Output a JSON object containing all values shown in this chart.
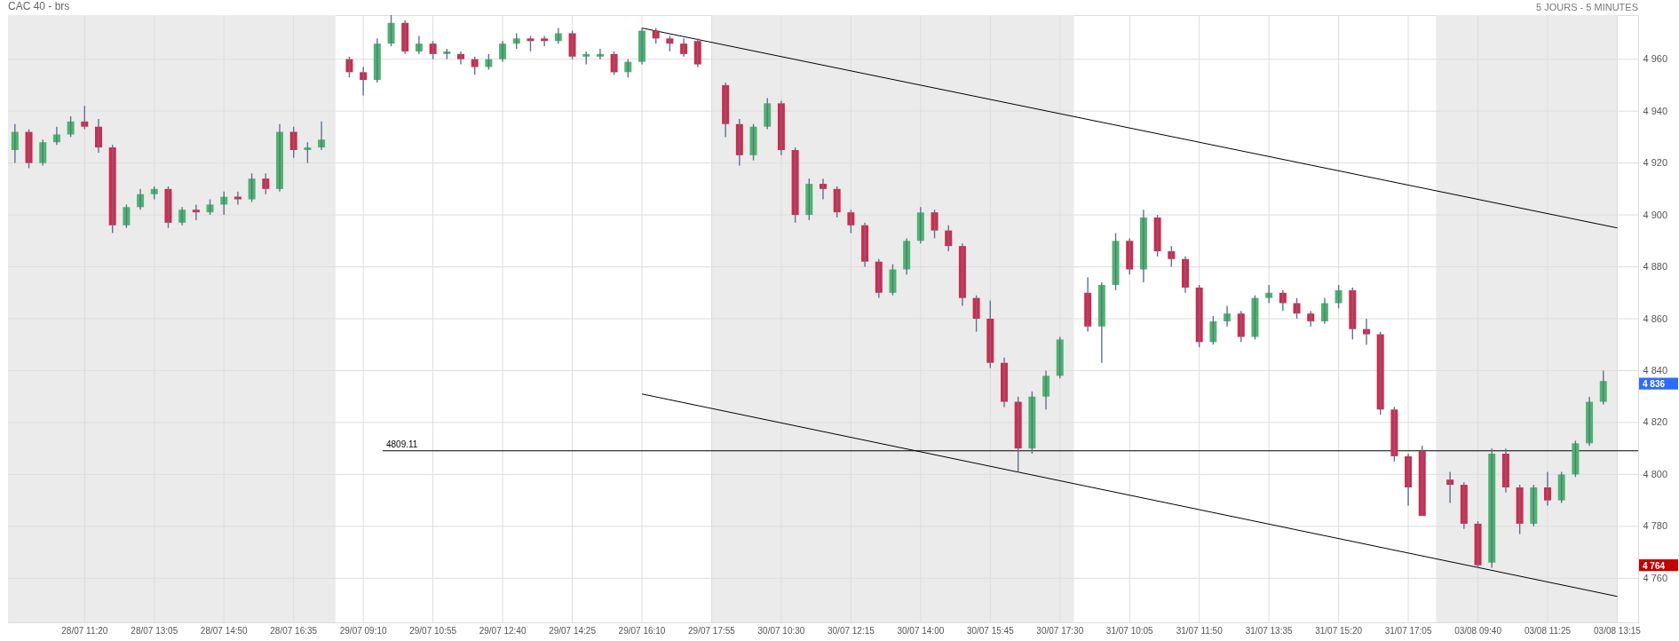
{
  "chart_data": {
    "type": "candlestick",
    "title": "CAC 40 - brs",
    "annotations": [
      "5 JOURS - 5 MINUTES",
      "4 836",
      "4 764"
    ],
    "categories": [
      null,
      null,
      null,
      null,
      null,
      "28/07 11:20",
      null,
      null,
      null,
      null,
      "28/07 13:05",
      null,
      null,
      null,
      null,
      "28/07 14:50",
      null,
      null,
      null,
      null,
      "28/07 16:35",
      null,
      null,
      null,
      null,
      "29/07 09:10",
      null,
      null,
      null,
      null,
      "29/07 10:55",
      null,
      null,
      null,
      null,
      "29/07 12:40",
      null,
      null,
      null,
      null,
      "29/07 14:25",
      null,
      null,
      null,
      null,
      "29/07 16:10",
      null,
      null,
      null,
      null,
      "29/07 17:55",
      null,
      null,
      null,
      null,
      "30/07 10:30",
      null,
      null,
      null,
      null,
      "30/07 12:15",
      null,
      null,
      null,
      null,
      "30/07 14:00",
      null,
      null,
      null,
      null,
      "30/07 15:45",
      null,
      null,
      null,
      null,
      "30/07 17:30",
      null,
      null,
      null,
      null,
      "31/07 10:05",
      null,
      null,
      null,
      null,
      "31/07 11:50",
      null,
      null,
      null,
      null,
      "31/07 13:35",
      null,
      null,
      null,
      null,
      "31/07 15:20",
      null,
      null,
      null,
      null,
      "31/07 17:05",
      null,
      null,
      null,
      null,
      "03/08 09:40",
      null,
      null,
      null,
      null,
      "03/08 11:25",
      null,
      null,
      null,
      null,
      "03/08 13:15",
      null
    ],
    "ohlc": [
      [
        4925,
        4935,
        4920,
        4932
      ],
      [
        4932,
        4933,
        4918,
        4920
      ],
      [
        4920,
        4929,
        4919,
        4928
      ],
      [
        4928,
        4934,
        4927,
        4931
      ],
      [
        4931,
        4938,
        4930,
        4936
      ],
      [
        4936,
        4942,
        4933,
        4934
      ],
      [
        4934,
        4937,
        4924,
        4926
      ],
      [
        4926,
        4927,
        4893,
        4896
      ],
      [
        4896,
        4904,
        4895,
        4903
      ],
      [
        4903,
        4910,
        4902,
        4908
      ],
      [
        4908,
        4911,
        4906,
        4910
      ],
      [
        4910,
        4911,
        4895,
        4897
      ],
      [
        4897,
        4903,
        4896,
        4902
      ],
      [
        4902,
        4904,
        4898,
        4901
      ],
      [
        4901,
        4906,
        4900,
        4904
      ],
      [
        4904,
        4909,
        4900,
        4907
      ],
      [
        4907,
        4909,
        4904,
        4906
      ],
      [
        4906,
        4916,
        4905,
        4914
      ],
      [
        4914,
        4916,
        4908,
        4910
      ],
      [
        4910,
        4935,
        4909,
        4932
      ],
      [
        4932,
        4934,
        4922,
        4925
      ],
      [
        4925,
        4928,
        4920,
        4926
      ],
      [
        4926,
        4936,
        4925,
        4929
      ],
      null,
      [
        4960,
        4961,
        4953,
        4955
      ],
      [
        4955,
        4957,
        4946,
        4952
      ],
      [
        4952,
        4968,
        4951,
        4966
      ],
      [
        4966,
        4977,
        4965,
        4974
      ],
      [
        4974,
        4975,
        4962,
        4963
      ],
      [
        4963,
        4969,
        4962,
        4966
      ],
      [
        4966,
        4967,
        4960,
        4962
      ],
      [
        4962,
        4964,
        4960,
        4963
      ],
      [
        4962,
        4963,
        4958,
        4960
      ],
      [
        4960,
        4961,
        4954,
        4957
      ],
      [
        4957,
        4962,
        4956,
        4960
      ],
      [
        4960,
        4967,
        4959,
        4966
      ],
      [
        4966,
        4970,
        4964,
        4968
      ],
      [
        4968,
        4969,
        4963,
        4967
      ],
      [
        4968,
        4969,
        4965,
        4967
      ],
      [
        4967,
        4972,
        4966,
        4970
      ],
      [
        4970,
        4971,
        4960,
        4961
      ],
      [
        4961,
        4963,
        4958,
        4962
      ],
      [
        4961,
        4964,
        4960,
        4962
      ],
      [
        4962,
        4963,
        4954,
        4955
      ],
      [
        4955,
        4960,
        4953,
        4959
      ],
      [
        4959,
        4972,
        4958,
        4971
      ],
      [
        4971,
        4972,
        4966,
        4968
      ],
      [
        4968,
        4969,
        4963,
        4966
      ],
      [
        4966,
        4968,
        4961,
        4962
      ],
      [
        4967,
        4968,
        4957,
        4958
      ],
      null,
      [
        4950,
        4951,
        4930,
        4935
      ],
      [
        4935,
        4937,
        4919,
        4923
      ],
      [
        4923,
        4935,
        4921,
        4934
      ],
      [
        4934,
        4945,
        4933,
        4943
      ],
      [
        4943,
        4944,
        4923,
        4925
      ],
      [
        4925,
        4926,
        4897,
        4900
      ],
      [
        4900,
        4914,
        4898,
        4912
      ],
      [
        4912,
        4914,
        4906,
        4910
      ],
      [
        4910,
        4911,
        4899,
        4901
      ],
      [
        4901,
        4902,
        4893,
        4896
      ],
      [
        4896,
        4897,
        4880,
        4882
      ],
      [
        4882,
        4883,
        4868,
        4870
      ],
      [
        4870,
        4881,
        4869,
        4879
      ],
      [
        4879,
        4891,
        4877,
        4890
      ],
      [
        4890,
        4903,
        4889,
        4901
      ],
      [
        4901,
        4902,
        4891,
        4894
      ],
      [
        4894,
        4896,
        4886,
        4888
      ],
      [
        4888,
        4889,
        4865,
        4868
      ],
      [
        4868,
        4869,
        4855,
        4860
      ],
      [
        4860,
        4867,
        4841,
        4843
      ],
      [
        4843,
        4845,
        4826,
        4828
      ],
      [
        4828,
        4830,
        4801,
        4810
      ],
      [
        4810,
        4832,
        4808,
        4830
      ],
      [
        4830,
        4840,
        4825,
        4838
      ],
      [
        4838,
        4853,
        4837,
        4852
      ],
      null,
      [
        4870,
        4876,
        4855,
        4857
      ],
      [
        4857,
        4874,
        4843,
        4873
      ],
      [
        4873,
        4893,
        4871,
        4890
      ],
      [
        4890,
        4891,
        4877,
        4879
      ],
      [
        4879,
        4902,
        4874,
        4899
      ],
      [
        4899,
        4900,
        4884,
        4886
      ],
      [
        4886,
        4888,
        4880,
        4883
      ],
      [
        4883,
        4884,
        4870,
        4872
      ],
      [
        4872,
        4873,
        4849,
        4851
      ],
      [
        4851,
        4861,
        4850,
        4859
      ],
      [
        4859,
        4865,
        4857,
        4862
      ],
      [
        4862,
        4863,
        4851,
        4853
      ],
      [
        4853,
        4869,
        4852,
        4868
      ],
      [
        4868,
        4873,
        4866,
        4870
      ],
      [
        4870,
        4871,
        4863,
        4866
      ],
      [
        4866,
        4868,
        4860,
        4862
      ],
      [
        4862,
        4863,
        4857,
        4859
      ],
      [
        4859,
        4868,
        4858,
        4866
      ],
      [
        4866,
        4873,
        4864,
        4871
      ],
      [
        4871,
        4872,
        4852,
        4856
      ],
      [
        4856,
        4860,
        4850,
        4854
      ],
      [
        4854,
        4855,
        4823,
        4825
      ],
      [
        4825,
        4826,
        4805,
        4807
      ],
      [
        4807,
        4808,
        4788,
        4795
      ],
      [
        4809,
        4811,
        4784,
        4784
      ],
      null,
      [
        4798,
        4801,
        4789,
        4796
      ],
      [
        4796,
        4797,
        4779,
        4781
      ],
      [
        4781,
        4782,
        4764,
        4765
      ],
      [
        4766,
        4810,
        4764,
        4808
      ],
      [
        4808,
        4810,
        4793,
        4795
      ],
      [
        4795,
        4796,
        4777,
        4781
      ],
      [
        4781,
        4796,
        4780,
        4795
      ],
      [
        4795,
        4801,
        4788,
        4790
      ],
      [
        4790,
        4801,
        4789,
        4800
      ],
      [
        4800,
        4813,
        4799,
        4812
      ],
      [
        4812,
        4830,
        4811,
        4828
      ],
      [
        4828,
        4840,
        4827,
        4836
      ],
      null,
      null
    ],
    "series": [
      {
        "type": "line",
        "color": "#000000",
        "x": [
          "29/07 16:10",
          "03/08 13:15"
        ],
        "values": [
          4972,
          4895
        ]
      },
      {
        "type": "line",
        "color": "#000000",
        "x": [
          "29/07 16:10",
          "03/08 13:15"
        ],
        "values": [
          4831,
          4753
        ]
      }
    ],
    "ref_lines": [
      {
        "axis": "y",
        "value": 4809.11,
        "label": "4809.11",
        "color": "#000000"
      }
    ],
    "ylim": [
      4743,
      4977
    ],
    "yticks": [
      {
        "value": 4760,
        "label": "4 760"
      },
      {
        "value": 4780,
        "label": "4 780"
      },
      {
        "value": 4800,
        "label": "4 800"
      },
      {
        "value": 4820,
        "label": "4 820"
      },
      {
        "value": 4840,
        "label": "4 840"
      },
      {
        "value": 4860,
        "label": "4 860"
      },
      {
        "value": 4880,
        "label": "4 880"
      },
      {
        "value": 4900,
        "label": "4 900"
      },
      {
        "value": 4920,
        "label": "4 920"
      },
      {
        "value": 4940,
        "label": "4 940"
      },
      {
        "value": 4960,
        "label": "4 960"
      }
    ],
    "grid": true
  }
}
